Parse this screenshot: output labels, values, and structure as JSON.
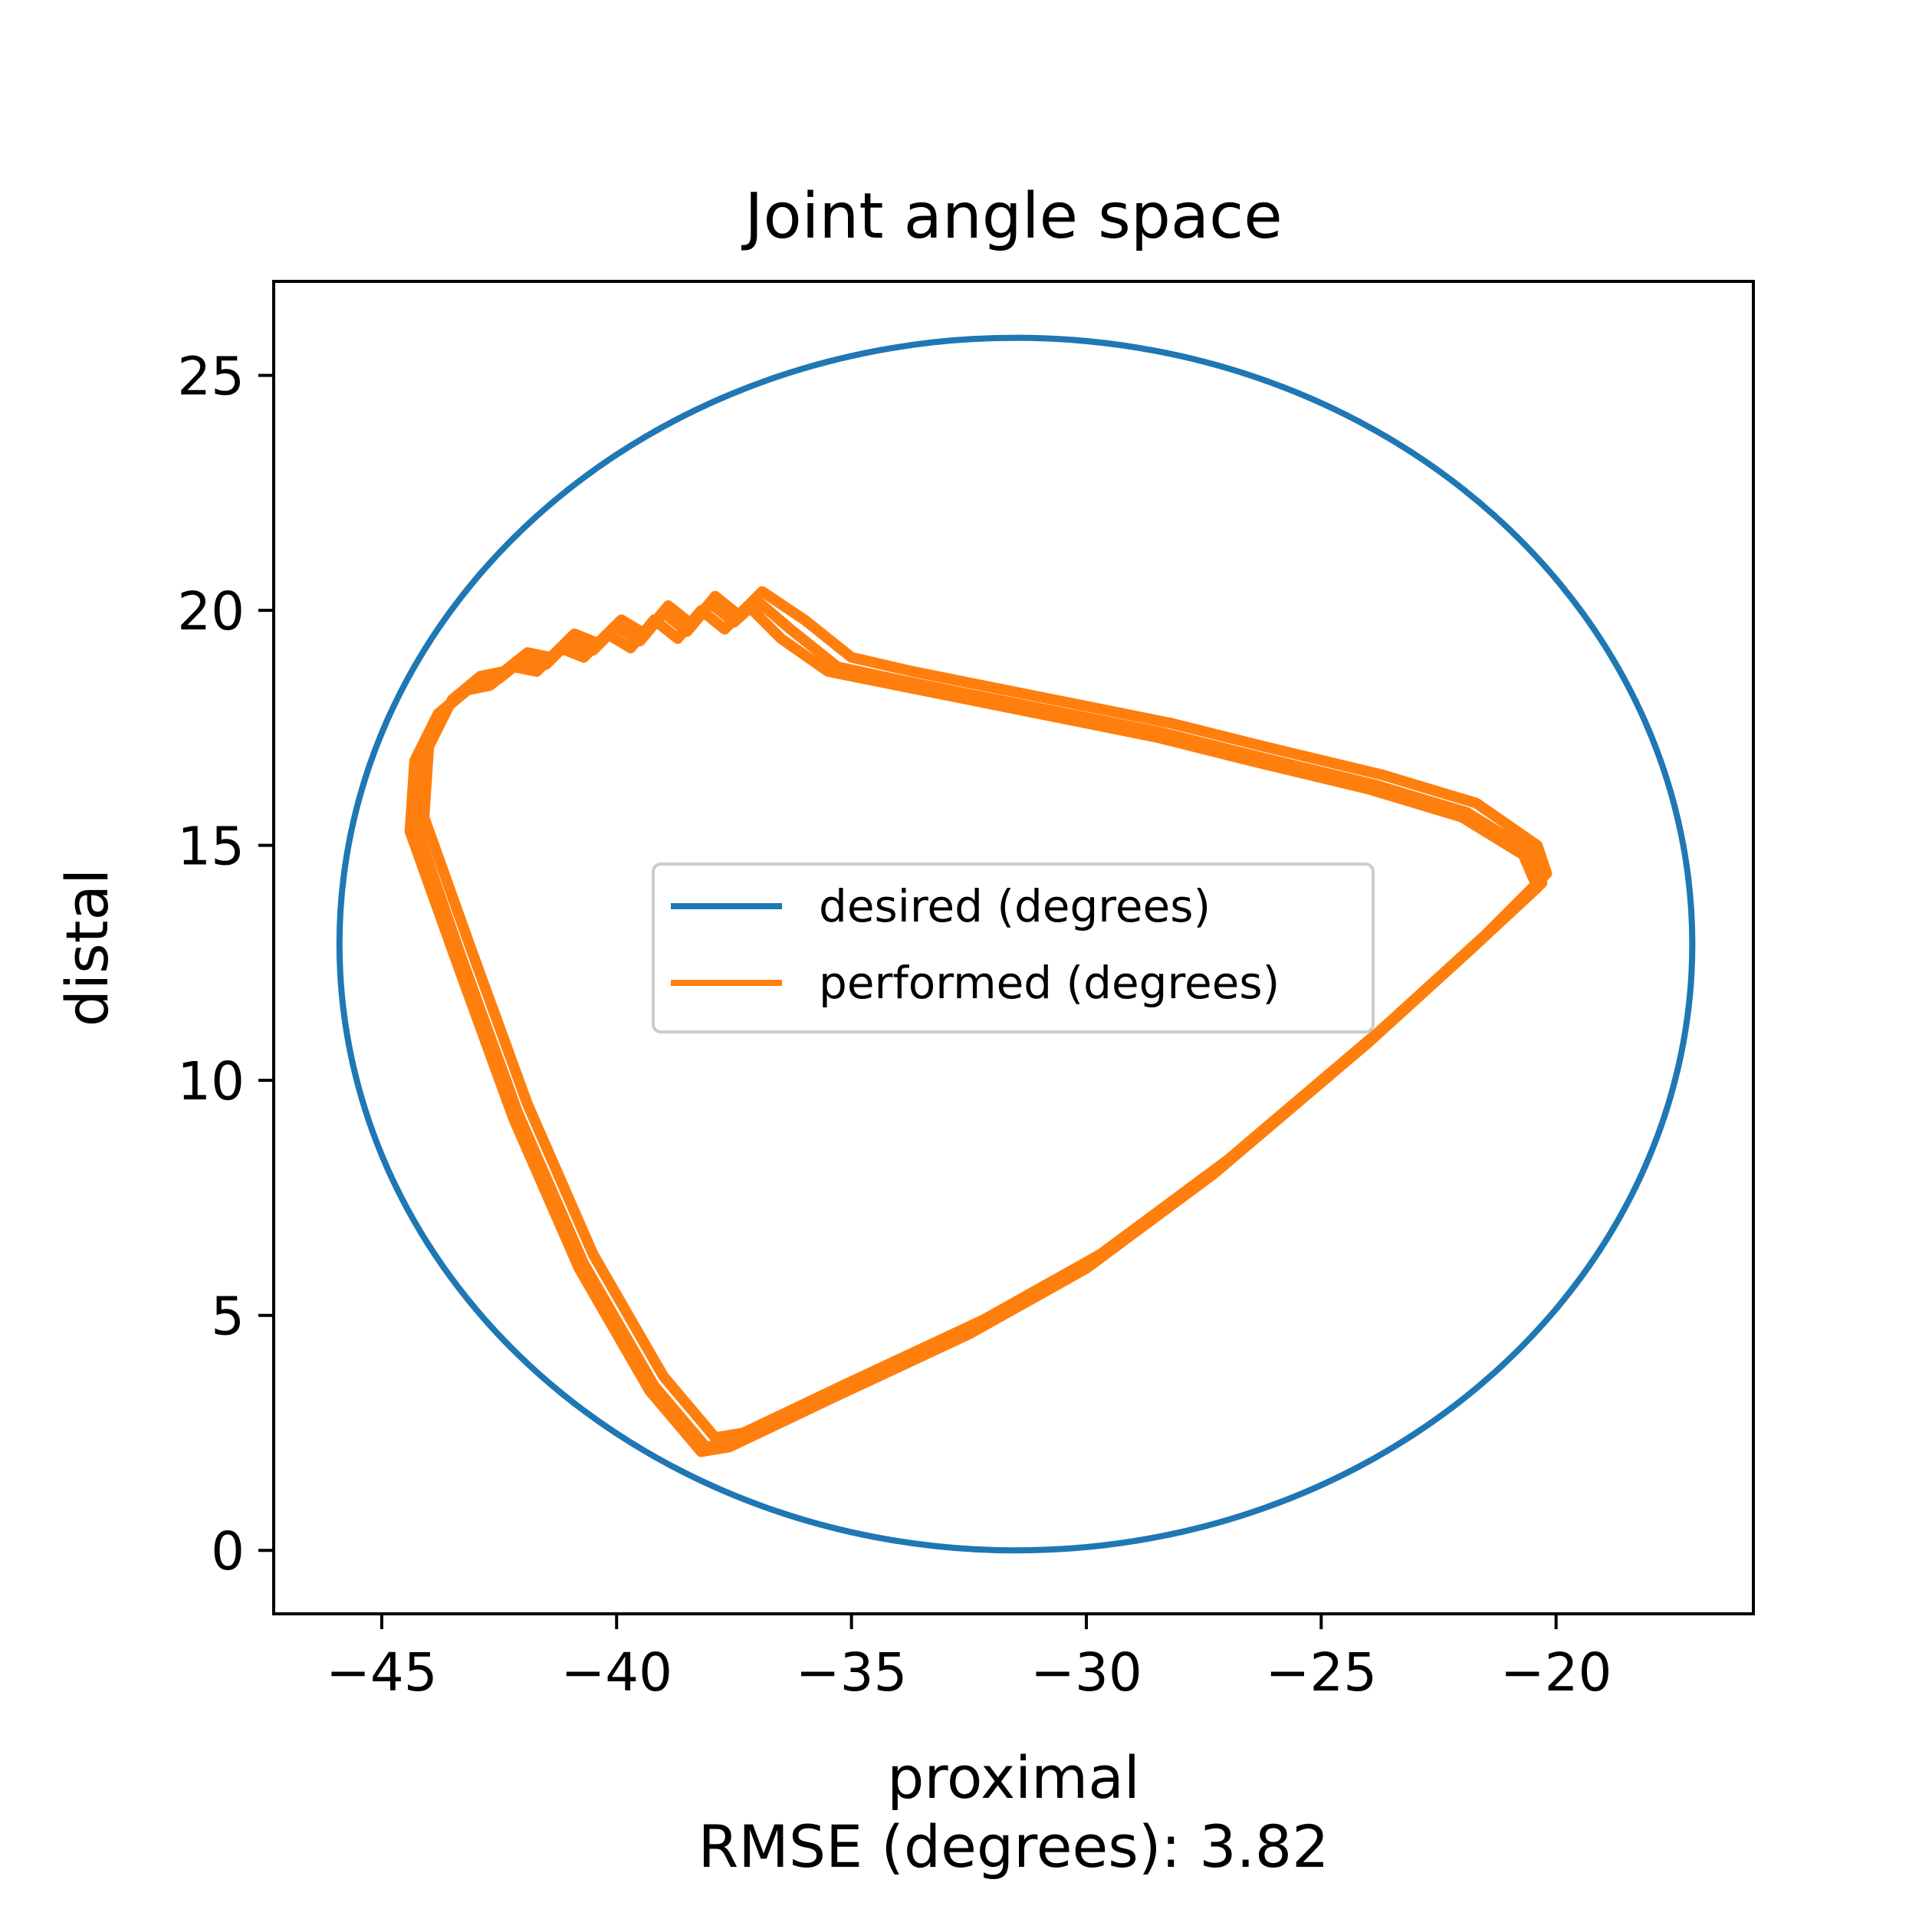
{
  "chart_data": {
    "type": "line",
    "title": "Joint angle space",
    "xlabel": "proximal",
    "ylabel": "distal",
    "footer": "RMSE (degrees): 3.82",
    "xlim": [
      -47.3,
      -15.8
    ],
    "ylim": [
      -1.35,
      27.0
    ],
    "xticks": [
      -45,
      -40,
      -35,
      -30,
      -25,
      -20
    ],
    "yticks": [
      0,
      5,
      10,
      15,
      20,
      25
    ],
    "xtick_labels": [
      "−45",
      "−40",
      "−35",
      "−30",
      "−25",
      "−20"
    ],
    "ytick_labels": [
      "0",
      "5",
      "10",
      "15",
      "20",
      "25"
    ],
    "grid": false,
    "legend_position": "center",
    "series": [
      {
        "name": "desired (degrees)",
        "color": "#1f77b4",
        "ellipse": {
          "center": [
            -31.5,
            12.9
          ],
          "radius": [
            14.4,
            12.9
          ]
        }
      },
      {
        "name": "performed (degrees)",
        "color": "#ff7f0e",
        "loops": [
          {
            "x": [
              -44.4,
              -43.4,
              -42.2,
              -40.8,
              -39.3,
              -38.2,
              -37.6,
              -35.5,
              -32.5,
              -30.0,
              -27.3,
              -24.0,
              -21.8,
              -20.4,
              -20.7,
              -22.0,
              -24.0,
              -26.5,
              -28.5,
              -31.0,
              -34.0,
              -35.5,
              -36.5,
              -37.2,
              -37.7,
              -38.2,
              -38.7,
              -39.2,
              -39.7,
              -40.2,
              -40.7,
              -41.2,
              -41.7,
              -42.2,
              -42.7,
              -43.2,
              -43.8,
              -44.3,
              -44.4
            ],
            "y": [
              15.3,
              12.5,
              9.2,
              6.0,
              3.4,
              2.1,
              2.2,
              3.2,
              4.6,
              6.0,
              8.0,
              10.8,
              12.8,
              14.1,
              14.8,
              15.6,
              16.2,
              16.8,
              17.3,
              17.8,
              18.4,
              18.7,
              19.4,
              20.1,
              19.6,
              20.0,
              19.4,
              19.8,
              19.2,
              19.5,
              19.0,
              19.2,
              18.7,
              18.8,
              18.4,
              18.3,
              17.8,
              16.8,
              15.3
            ]
          },
          {
            "x": [
              -44.1,
              -43.1,
              -41.9,
              -40.5,
              -39.0,
              -37.9,
              -37.3,
              -35.2,
              -32.2,
              -29.7,
              -27.0,
              -23.7,
              -21.5,
              -20.2,
              -20.4,
              -21.7,
              -23.7,
              -26.2,
              -28.2,
              -30.7,
              -33.7,
              -35.0,
              -36.0,
              -36.9,
              -37.4,
              -37.9,
              -38.4,
              -38.9,
              -39.4,
              -39.9,
              -40.4,
              -40.9,
              -41.4,
              -41.9,
              -42.4,
              -42.9,
              -43.5,
              -44.0,
              -44.1
            ],
            "y": [
              15.6,
              12.8,
              9.5,
              6.3,
              3.7,
              2.4,
              2.5,
              3.5,
              4.9,
              6.3,
              8.3,
              11.1,
              13.1,
              14.4,
              15.0,
              15.9,
              16.5,
              17.1,
              17.6,
              18.1,
              18.7,
              19.0,
              19.8,
              20.4,
              19.9,
              20.3,
              19.7,
              20.1,
              19.5,
              19.8,
              19.3,
              19.5,
              19.0,
              19.1,
              18.7,
              18.6,
              18.1,
              17.1,
              15.6
            ]
          },
          {
            "x": [
              -44.3,
              -43.3,
              -42.1,
              -40.7,
              -39.2,
              -38.1,
              -37.5,
              -35.4,
              -32.4,
              -29.9,
              -27.2,
              -23.9,
              -21.7,
              -20.3,
              -20.6,
              -21.9,
              -23.9,
              -26.4,
              -28.4,
              -30.9,
              -33.9,
              -35.3,
              -36.3,
              -37.0,
              -37.5,
              -38.0,
              -38.5,
              -39.0,
              -39.5,
              -40.0,
              -40.5,
              -41.0,
              -41.5,
              -42.0,
              -42.5,
              -43.0,
              -43.6,
              -44.1,
              -44.3
            ],
            "y": [
              15.5,
              12.6,
              9.3,
              6.1,
              3.5,
              2.2,
              2.3,
              3.3,
              4.7,
              6.1,
              8.1,
              10.9,
              12.9,
              14.2,
              14.9,
              15.7,
              16.3,
              16.9,
              17.4,
              17.9,
              18.5,
              18.8,
              19.6,
              20.2,
              19.75,
              20.15,
              19.55,
              19.95,
              19.35,
              19.65,
              19.15,
              19.35,
              18.85,
              18.95,
              18.55,
              18.45,
              17.95,
              16.95,
              15.5
            ]
          }
        ]
      }
    ]
  }
}
